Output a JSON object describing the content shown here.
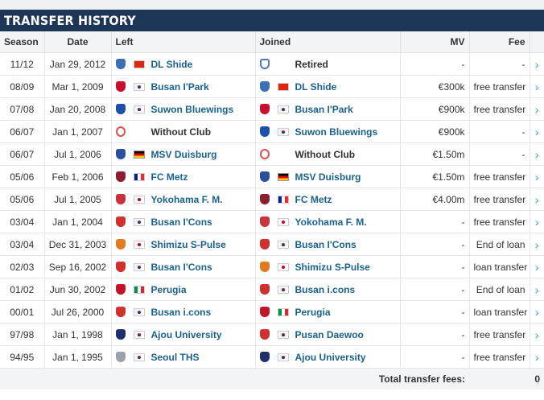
{
  "title": "TRANSFER HISTORY",
  "columns": {
    "season": "Season",
    "date": "Date",
    "left": "Left",
    "joined": "Joined",
    "mv": "MV",
    "fee": "Fee"
  },
  "rows": [
    {
      "season": "11/12",
      "date": "Jan 29, 2012",
      "left": "DL Shide",
      "left_flag": "china",
      "left_crest": "dl-shide-crest",
      "joined": "Retired",
      "joined_flag": "",
      "joined_crest": "retired-icon",
      "mv": "-",
      "fee": "-"
    },
    {
      "season": "08/09",
      "date": "Mar 1, 2009",
      "left": "Busan I'Park",
      "left_flag": "korea",
      "left_crest": "busan-ipark-crest",
      "joined": "DL Shide",
      "joined_flag": "china",
      "joined_crest": "dl-shide-crest",
      "mv": "€300k",
      "fee": "free transfer"
    },
    {
      "season": "07/08",
      "date": "Jan 20, 2008",
      "left": "Suwon Bluewings",
      "left_flag": "korea",
      "left_crest": "suwon-bluewings-crest",
      "joined": "Busan I'Park",
      "joined_flag": "korea",
      "joined_crest": "busan-ipark-crest",
      "mv": "€900k",
      "fee": "free transfer"
    },
    {
      "season": "06/07",
      "date": "Jan 1, 2007",
      "left": "Without Club",
      "left_flag": "",
      "left_crest": "without-club-icon",
      "joined": "Suwon Bluewings",
      "joined_flag": "korea",
      "joined_crest": "suwon-bluewings-crest",
      "mv": "€900k",
      "fee": "-"
    },
    {
      "season": "06/07",
      "date": "Jul 1, 2006",
      "left": "MSV Duisburg",
      "left_flag": "germany",
      "left_crest": "msv-duisburg-crest",
      "joined": "Without Club",
      "joined_flag": "",
      "joined_crest": "without-club-icon",
      "mv": "€1.50m",
      "fee": "-"
    },
    {
      "season": "05/06",
      "date": "Feb 1, 2006",
      "left": "FC Metz",
      "left_flag": "france",
      "left_crest": "fc-metz-crest",
      "joined": "MSV Duisburg",
      "joined_flag": "germany",
      "joined_crest": "msv-duisburg-crest",
      "mv": "€1.50m",
      "fee": "free transfer"
    },
    {
      "season": "05/06",
      "date": "Jul 1, 2005",
      "left": "Yokohama F. M.",
      "left_flag": "japan",
      "left_crest": "yokohama-fm-crest",
      "joined": "FC Metz",
      "joined_flag": "france",
      "joined_crest": "fc-metz-crest",
      "mv": "€4.00m",
      "fee": "free transfer"
    },
    {
      "season": "03/04",
      "date": "Jan 1, 2004",
      "left": "Busan I'Cons",
      "left_flag": "korea",
      "left_crest": "busan-icons-crest",
      "joined": "Yokohama F. M.",
      "joined_flag": "japan",
      "joined_crest": "yokohama-fm-crest",
      "mv": "-",
      "fee": "free transfer"
    },
    {
      "season": "03/04",
      "date": "Dec 31, 2003",
      "left": "Shimizu S-Pulse",
      "left_flag": "japan",
      "left_crest": "shimizu-spulse-crest",
      "joined": "Busan I'Cons",
      "joined_flag": "korea",
      "joined_crest": "busan-icons-crest",
      "mv": "-",
      "fee": "End of loan"
    },
    {
      "season": "02/03",
      "date": "Sep 16, 2002",
      "left": "Busan I'Cons",
      "left_flag": "korea",
      "left_crest": "busan-icons-crest",
      "joined": "Shimizu S-Pulse",
      "joined_flag": "japan",
      "joined_crest": "shimizu-spulse-crest",
      "mv": "-",
      "fee": "loan transfer"
    },
    {
      "season": "01/02",
      "date": "Jun 30, 2002",
      "left": "Perugia",
      "left_flag": "italy",
      "left_crest": "perugia-crest",
      "joined": "Busan i.cons",
      "joined_flag": "korea",
      "joined_crest": "busan-icons-crest",
      "mv": "-",
      "fee": "End of loan"
    },
    {
      "season": "00/01",
      "date": "Jul 26, 2000",
      "left": "Busan i.cons",
      "left_flag": "korea",
      "left_crest": "busan-icons-crest",
      "joined": "Perugia",
      "joined_flag": "italy",
      "joined_crest": "perugia-crest",
      "mv": "-",
      "fee": "loan transfer"
    },
    {
      "season": "97/98",
      "date": "Jan 1, 1998",
      "left": "Ajou University",
      "left_flag": "korea",
      "left_crest": "ajou-university-crest",
      "joined": "Pusan Daewoo",
      "joined_flag": "korea",
      "joined_crest": "pusan-daewoo-crest",
      "mv": "-",
      "fee": "free transfer"
    },
    {
      "season": "94/95",
      "date": "Jan 1, 1995",
      "left": "Seoul THS",
      "left_flag": "korea",
      "left_crest": "seoul-ths-crest",
      "joined": "Ajou University",
      "joined_flag": "korea",
      "joined_crest": "ajou-university-crest",
      "mv": "-",
      "fee": "free transfer"
    }
  ],
  "footer": {
    "label": "Total transfer fees:",
    "value": "0"
  },
  "crest_colors": {
    "dl-shide-crest": "#3b6fb6",
    "retired-icon": "#4a78c4",
    "busan-ipark-crest": "#c8102e",
    "suwon-bluewings-crest": "#1f4fa8",
    "without-club-icon": "#d9534f",
    "msv-duisburg-crest": "#2a4f9e",
    "fc-metz-crest": "#8b1e2f",
    "yokohama-fm-crest": "#c8343b",
    "busan-icons-crest": "#d0312d",
    "shimizu-spulse-crest": "#e07b1f",
    "perugia-crest": "#c0152b",
    "ajou-university-crest": "#1f2f6b",
    "pusan-daewoo-crest": "#d0312d",
    "seoul-ths-crest": "#9aa3ad"
  },
  "arrow_icon": "›"
}
